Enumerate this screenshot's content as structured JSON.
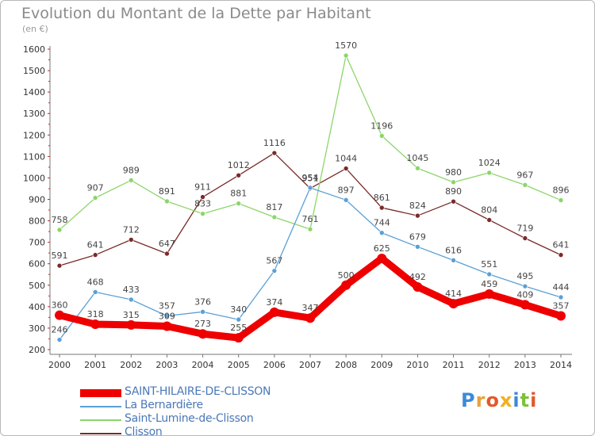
{
  "header": {
    "title": "Evolution du Montant de la Dette par Habitant",
    "subtitle": "(en €)"
  },
  "logo": {
    "text": "Proxiti",
    "colors": [
      "#3b8ad8",
      "#e8a23a",
      "#e05a2a",
      "#f0b020",
      "#3b8ad8",
      "#7cc23a",
      "#e05a2a"
    ]
  },
  "chart_data": {
    "type": "line",
    "title": "Evolution du Montant de la Dette par Habitant",
    "subtitle": "(en €)",
    "xlabel": "",
    "ylabel": "",
    "ylim": [
      200,
      1600
    ],
    "yticks": [
      200,
      300,
      400,
      500,
      600,
      700,
      800,
      900,
      1000,
      1100,
      1200,
      1300,
      1400,
      1500,
      1600
    ],
    "grid": false,
    "legend": "bottom-left",
    "x": [
      "2000",
      "2001",
      "2002",
      "2003",
      "2004",
      "2005",
      "2006",
      "2007",
      "2008",
      "2009",
      "2010",
      "2011",
      "2012",
      "2013",
      "2014"
    ],
    "series": [
      {
        "name": "SAINT-HILAIRE-DE-CLISSON",
        "color": "#ee0000",
        "values": [
          360,
          318,
          315,
          309,
          273,
          255,
          374,
          347,
          500,
          625,
          492,
          414,
          459,
          409,
          357
        ]
      },
      {
        "name": "La Bernardière",
        "color": "#5aa0d6",
        "values": [
          246,
          468,
          433,
          357,
          376,
          340,
          567,
          954,
          897,
          744,
          679,
          616,
          551,
          495,
          444
        ]
      },
      {
        "name": "Saint-Lumine-de-Clisson",
        "color": "#8bd66a",
        "values": [
          758,
          907,
          989,
          891,
          833,
          881,
          817,
          761,
          1570,
          1196,
          1045,
          980,
          1024,
          967,
          896
        ]
      },
      {
        "name": "Clisson",
        "color": "#7a2a2a",
        "values": [
          591,
          641,
          712,
          647,
          911,
          1012,
          1116,
          951,
          1044,
          861,
          824,
          890,
          804,
          719,
          641
        ]
      }
    ]
  }
}
